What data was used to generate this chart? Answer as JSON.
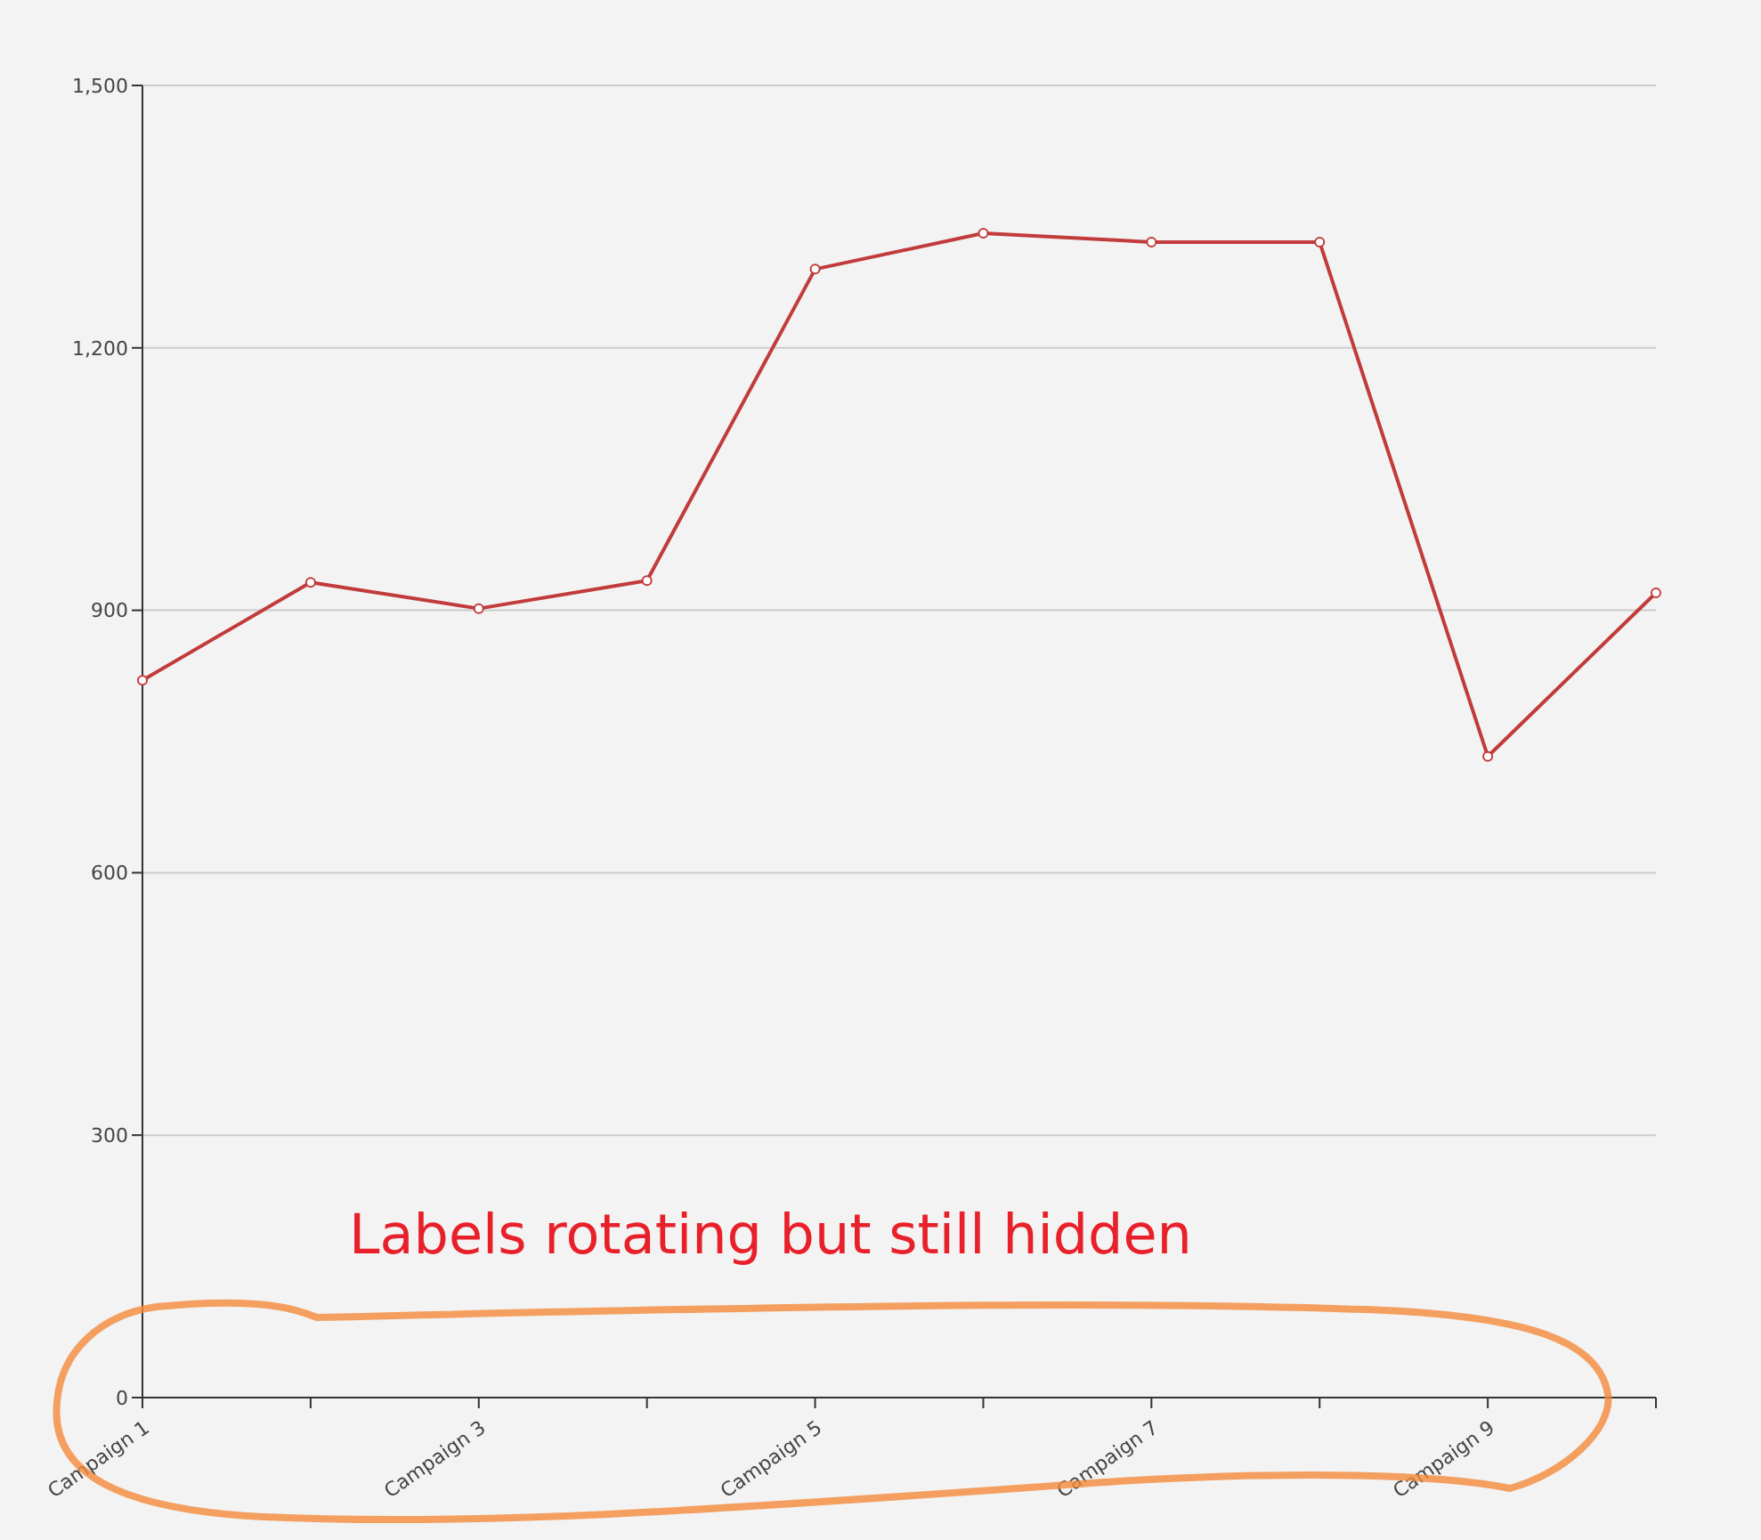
{
  "chart_data": {
    "type": "line",
    "categories": [
      "Campaign 1",
      null,
      "Campaign 3",
      null,
      "Campaign 5",
      null,
      "Campaign 7",
      null,
      "Campaign 9",
      null
    ],
    "series": [
      {
        "color": "#c23b3b",
        "values": [
          820,
          932,
          902,
          934,
          1290,
          1331,
          1321,
          1321,
          733,
          920
        ]
      }
    ],
    "ylim": [
      0,
      1500
    ],
    "yticks": [
      0,
      300,
      600,
      900,
      {
        "value": 1200,
        "label": "1,200"
      },
      {
        "value": 1500,
        "label": "1,500"
      }
    ],
    "grid": "y",
    "marker": "circle",
    "line_style": "solid",
    "legend": false,
    "annotations": [
      "Labels rotating but still hidden"
    ]
  }
}
